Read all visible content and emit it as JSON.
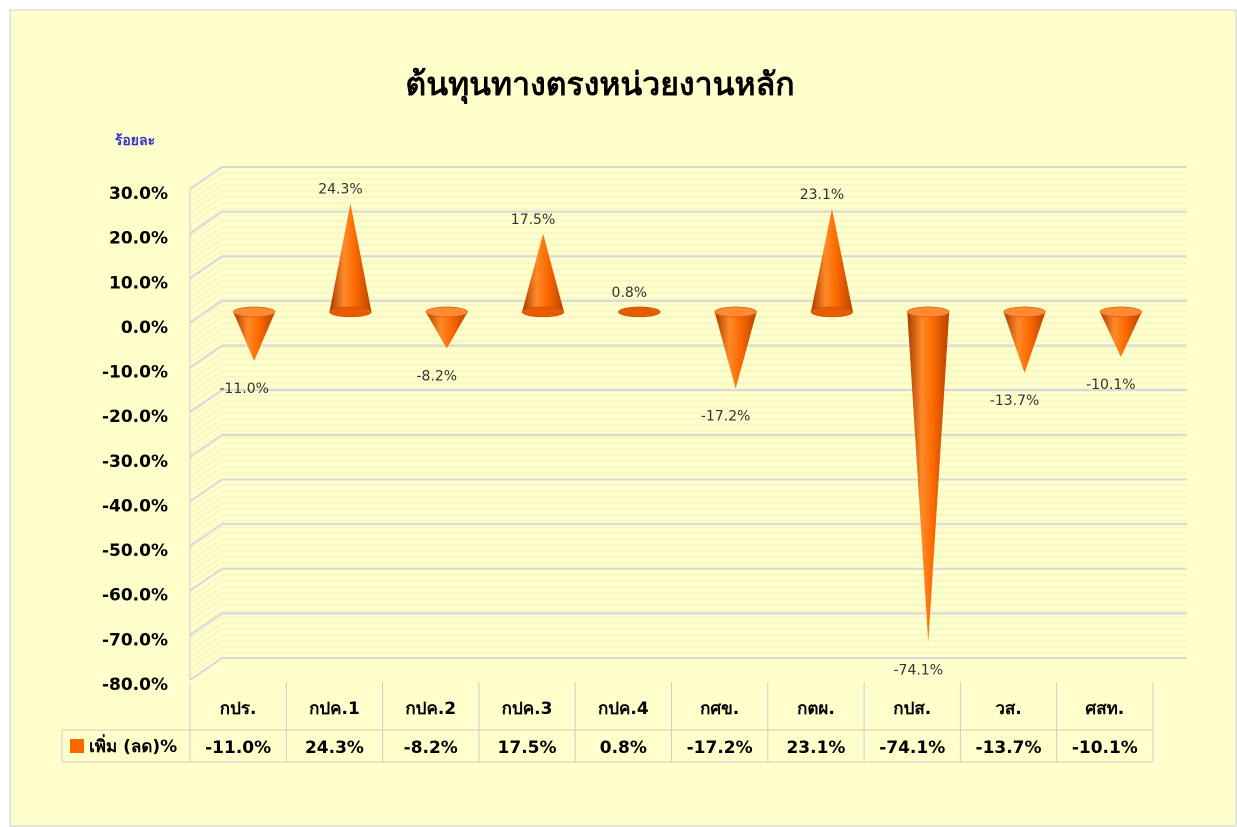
{
  "chart_data": {
    "type": "cone",
    "title": "ต้นทุนทางตรงหน่วยงานหลัก",
    "y_label": "ร้อยละ",
    "categories": [
      "กปร.",
      "กปค.1",
      "กปค.2",
      "กปค.3",
      "กปค.4",
      "กศข.",
      "กตผ.",
      "กปส.",
      "วส.",
      "ศสท."
    ],
    "series": [
      {
        "name": "เพิ่ม (ลด)%",
        "color": "#ff6600",
        "values": [
          -11.0,
          24.3,
          -8.2,
          17.5,
          0.8,
          -17.2,
          23.1,
          -74.1,
          -13.7,
          -10.1
        ],
        "value_labels": [
          "-11.0%",
          "24.3%",
          "-8.2%",
          "17.5%",
          "0.8%",
          "-17.2%",
          "23.1%",
          "-74.1%",
          "-13.7%",
          "-10.1%"
        ]
      }
    ],
    "ylim": [
      -80,
      30
    ],
    "yticks": [
      {
        "value": 30,
        "label": "30.0%"
      },
      {
        "value": 20,
        "label": "20.0%"
      },
      {
        "value": 10,
        "label": "10.0%"
      },
      {
        "value": 0,
        "label": "0.0%"
      },
      {
        "value": -10,
        "label": "-10.0%"
      },
      {
        "value": -20,
        "label": "-20.0%"
      },
      {
        "value": -30,
        "label": "-30.0%"
      },
      {
        "value": -40,
        "label": "-40.0%"
      },
      {
        "value": -50,
        "label": "-50.0%"
      },
      {
        "value": -60,
        "label": "-60.0%"
      },
      {
        "value": -70,
        "label": "-70.0%"
      },
      {
        "value": -80,
        "label": "-80.0%"
      }
    ],
    "grid": true,
    "data_table": true
  }
}
